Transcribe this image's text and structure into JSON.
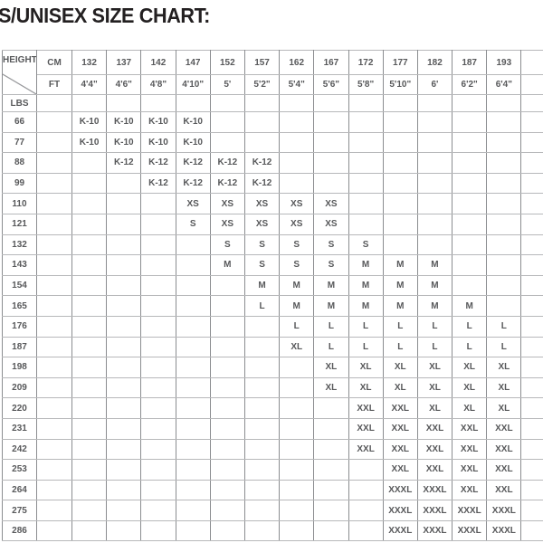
{
  "title": "S/UNISEX SIZE CHART:",
  "chart_data": {
    "type": "table",
    "title": "S/UNISEX SIZE CHART:",
    "labels": {
      "corner": "HEIGHT",
      "col_unit_top": "CM",
      "col_unit_bottom": "FT",
      "row_unit": "LBS"
    },
    "height_cm": [
      "132",
      "137",
      "142",
      "147",
      "152",
      "157",
      "162",
      "167",
      "172",
      "177",
      "182",
      "187",
      "193"
    ],
    "height_ft": [
      "4'4\"",
      "4'6\"",
      "4'8\"",
      "4'10\"",
      "5'",
      "5'2\"",
      "5'4\"",
      "5'6\"",
      "5'8\"",
      "5'10\"",
      "6'",
      "6'2\"",
      "6'4\""
    ],
    "weight_lbs": [
      "66",
      "77",
      "88",
      "99",
      "110",
      "121",
      "132",
      "143",
      "154",
      "165",
      "176",
      "187",
      "198",
      "209",
      "220",
      "231",
      "242",
      "253",
      "264",
      "275",
      "286"
    ],
    "sizes": [
      [
        "K-10",
        "K-10",
        "K-10",
        "K-10",
        "",
        "",
        "",
        "",
        "",
        "",
        "",
        "",
        ""
      ],
      [
        "K-10",
        "K-10",
        "K-10",
        "K-10",
        "",
        "",
        "",
        "",
        "",
        "",
        "",
        "",
        ""
      ],
      [
        "",
        "K-12",
        "K-12",
        "K-12",
        "K-12",
        "K-12",
        "",
        "",
        "",
        "",
        "",
        "",
        ""
      ],
      [
        "",
        "",
        "K-12",
        "K-12",
        "K-12",
        "K-12",
        "",
        "",
        "",
        "",
        "",
        "",
        ""
      ],
      [
        "",
        "",
        "",
        "XS",
        "XS",
        "XS",
        "XS",
        "XS",
        "",
        "",
        "",
        "",
        ""
      ],
      [
        "",
        "",
        "",
        "S",
        "XS",
        "XS",
        "XS",
        "XS",
        "",
        "",
        "",
        "",
        ""
      ],
      [
        "",
        "",
        "",
        "",
        "S",
        "S",
        "S",
        "S",
        "S",
        "",
        "",
        "",
        ""
      ],
      [
        "",
        "",
        "",
        "",
        "M",
        "S",
        "S",
        "S",
        "M",
        "M",
        "M",
        "",
        ""
      ],
      [
        "",
        "",
        "",
        "",
        "",
        "M",
        "M",
        "M",
        "M",
        "M",
        "M",
        "",
        ""
      ],
      [
        "",
        "",
        "",
        "",
        "",
        "L",
        "M",
        "M",
        "M",
        "M",
        "M",
        "M",
        ""
      ],
      [
        "",
        "",
        "",
        "",
        "",
        "",
        "L",
        "L",
        "L",
        "L",
        "L",
        "L",
        "L"
      ],
      [
        "",
        "",
        "",
        "",
        "",
        "",
        "XL",
        "L",
        "L",
        "L",
        "L",
        "L",
        "L"
      ],
      [
        "",
        "",
        "",
        "",
        "",
        "",
        "",
        "XL",
        "XL",
        "XL",
        "XL",
        "XL",
        "XL"
      ],
      [
        "",
        "",
        "",
        "",
        "",
        "",
        "",
        "XL",
        "XL",
        "XL",
        "XL",
        "XL",
        "XL"
      ],
      [
        "",
        "",
        "",
        "",
        "",
        "",
        "",
        "",
        "XXL",
        "XXL",
        "XL",
        "XL",
        "XL"
      ],
      [
        "",
        "",
        "",
        "",
        "",
        "",
        "",
        "",
        "XXL",
        "XXL",
        "XXL",
        "XXL",
        "XXL"
      ],
      [
        "",
        "",
        "",
        "",
        "",
        "",
        "",
        "",
        "XXL",
        "XXL",
        "XXL",
        "XXL",
        "XXL"
      ],
      [
        "",
        "",
        "",
        "",
        "",
        "",
        "",
        "",
        "",
        "XXL",
        "XXL",
        "XXL",
        "XXL"
      ],
      [
        "",
        "",
        "",
        "",
        "",
        "",
        "",
        "",
        "",
        "XXXL",
        "XXXL",
        "XXL",
        "XXL"
      ],
      [
        "",
        "",
        "",
        "",
        "",
        "",
        "",
        "",
        "",
        "XXXL",
        "XXXL",
        "XXXL",
        "XXXL"
      ],
      [
        "",
        "",
        "",
        "",
        "",
        "",
        "",
        "",
        "",
        "XXXL",
        "XXXL",
        "XXXL",
        "XXXL"
      ]
    ],
    "layout_hints": {
      "columns_axis": "height",
      "rows_axis": "weight"
    }
  },
  "colors": {
    "background": "#ffffff",
    "title_text": "#232021",
    "table_text": "#57585a",
    "grid_vertical": "#8b8d90",
    "grid_horizontal": "#b7b8ba",
    "diagonal": "#97989b"
  }
}
